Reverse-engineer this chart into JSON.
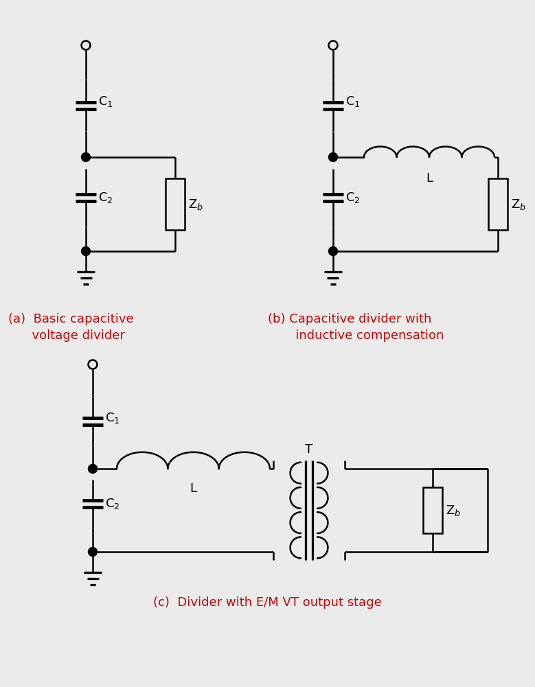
{
  "bg_color": "#ebebeb",
  "line_color": "#000000",
  "text_color": "#cc0000",
  "label_color": "#000000",
  "title_a": "(a)  Basic capacitive\n      voltage divider",
  "title_b": "(b) Capacitive divider with\n       inductive compensation",
  "title_c": "(c)  Divider with E/M VT output stage",
  "fig_w": 7.79,
  "fig_h": 10.01
}
